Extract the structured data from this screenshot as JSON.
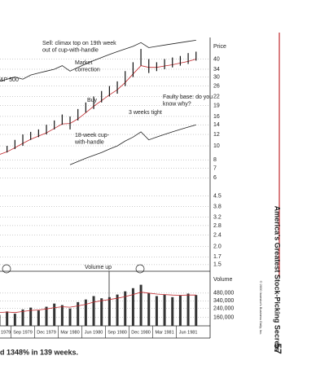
{
  "chart_data": {
    "type": "bar-ohlc",
    "y_label": "Price",
    "log": true,
    "grid": true,
    "categories": [
      "1979",
      null,
      null,
      "Sep 1979",
      null,
      null,
      "Dec 1979",
      null,
      null,
      "Mar 1980",
      null,
      null,
      "Jun 1980",
      null,
      null,
      "Sep 1980",
      null,
      null,
      "Dec 1980",
      null,
      null,
      "Mar 1981",
      null,
      null,
      "Jun 1981",
      null
    ],
    "high": [
      9.5,
      10,
      11,
      12,
      12.5,
      13,
      14,
      15,
      16.5,
      16,
      18,
      20,
      22,
      24,
      26,
      28,
      33,
      38,
      47,
      40,
      38,
      40,
      41,
      42,
      44,
      45
    ],
    "low": [
      8.5,
      9,
      9.5,
      10,
      11,
      11.5,
      12,
      13,
      14,
      13,
      15,
      17,
      18,
      20,
      22,
      23,
      26,
      30,
      36,
      32,
      33,
      34,
      35,
      36,
      37,
      39
    ],
    "color": "#111111",
    "series": [
      {
        "name": "&P 500",
        "color": "#222222",
        "values": [
          28,
          29,
          30,
          29,
          31,
          32,
          33,
          34,
          36,
          33,
          35,
          37,
          39,
          41,
          43,
          45,
          47,
          49,
          52,
          48,
          49,
          50,
          51,
          52,
          53,
          54
        ]
      },
      {
        "color": "#222222",
        "values": [
          null,
          null,
          null,
          null,
          null,
          null,
          null,
          null,
          null,
          7.4,
          7.8,
          8.2,
          8.6,
          9,
          9.5,
          10,
          10.8,
          11.5,
          12.5,
          11,
          11.5,
          12,
          12.5,
          13,
          13.5,
          14
        ]
      },
      {
        "color": "#c0282d",
        "values": [
          8.7,
          9.1,
          9.7,
          10.4,
          11.1,
          11.7,
          12.3,
          13.2,
          14.2,
          14.3,
          15.4,
          17,
          18.8,
          20.6,
          22.6,
          24.5,
          27.5,
          31.5,
          36,
          35,
          35,
          35.8,
          36.5,
          37.5,
          38.5,
          40
        ]
      }
    ],
    "ylim": [
      1.35,
      55
    ],
    "yticks": [
      40,
      34,
      30,
      26,
      22,
      19,
      16,
      14,
      12,
      10,
      8,
      7,
      6,
      4.5,
      3.8,
      3.2,
      2.8,
      2.4,
      {
        "value": 2,
        "label": "2.0"
      },
      1.7,
      1.5
    ],
    "annotations": [
      {
        "lines": [
          "Sell: climax top on 19th week",
          "out of cup-with-handle"
        ]
      },
      {
        "lines": [
          "Market",
          "correction"
        ]
      },
      {
        "lines": [
          "Buy"
        ]
      },
      {
        "lines": [
          "3 weeks tight"
        ]
      },
      {
        "lines": [
          "Faulty base: do you",
          "know why?"
        ]
      },
      {
        "lines": [
          "18-week cup-",
          "with-handle"
        ]
      },
      {
        "lines": [
          "Volume up"
        ]
      }
    ],
    "volume": {
      "label": "Volume",
      "color": "#333333",
      "values": [
        180000,
        210000,
        190000,
        230000,
        250000,
        220000,
        260000,
        300000,
        280000,
        240000,
        320000,
        360000,
        420000,
        380000,
        400000,
        450000,
        520000,
        600000,
        700000,
        480000,
        420000,
        450000,
        400000,
        430000,
        470000,
        440000
      ],
      "average": {
        "color": "#c0282d",
        "values": [
          200000,
          205000,
          200000,
          210000,
          220000,
          225000,
          235000,
          250000,
          260000,
          255000,
          270000,
          290000,
          320000,
          340000,
          360000,
          380000,
          410000,
          450000,
          500000,
          480000,
          460000,
          450000,
          440000,
          435000,
          440000,
          440000
        ]
      },
      "ylim": [
        110000,
        1070000
      ],
      "yticks": [
        {
          "value": 480000,
          "label": "480,000"
        },
        {
          "value": 340000,
          "label": "340,000"
        },
        {
          "value": 240000,
          "label": "240,000"
        },
        {
          "value": 160000,
          "label": "160,000"
        }
      ]
    },
    "caption": "d 1348% in 139 weeks."
  },
  "page": {
    "running_title": "America's Greatest Stock-Picking Secrets",
    "page_number": "57",
    "copyright": "© 2000 Investor's Business Daily, Inc."
  }
}
